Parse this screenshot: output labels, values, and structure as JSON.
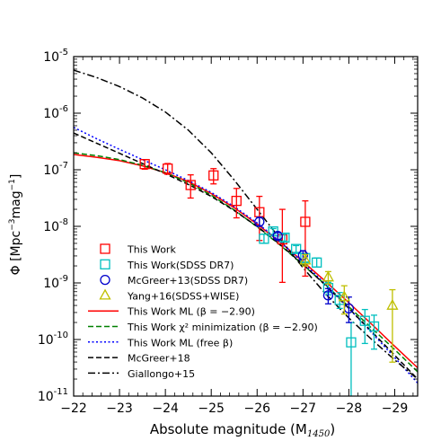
{
  "chart_data": {
    "type": "scatter",
    "xlabel": "Absolute magnitude (M",
    "xlabel_sub": "1450",
    "xlabel_close": ")",
    "ylabel": "Φ [Mpc",
    "ylabel_exp1": "−3",
    "ylabel_mid": "mag",
    "ylabel_exp2": "−1",
    "ylabel_close": "]",
    "xlim": [
      -22,
      -29.5
    ],
    "ylim_log10": [
      -11,
      -5
    ],
    "x_scale": "linear-inverted",
    "y_scale": "log",
    "x_ticks": [
      -22,
      -23,
      -24,
      -25,
      -26,
      -27,
      -28,
      -29
    ],
    "x_tick_labels": [
      "−22",
      "−23",
      "−24",
      "−25",
      "−26",
      "−27",
      "−28",
      "−29"
    ],
    "y_ticks": [
      -11,
      -10,
      -9,
      -8,
      -7,
      -6,
      -5
    ],
    "y_tick_labels": [
      {
        "base": "10",
        "exp": "-11"
      },
      {
        "base": "10",
        "exp": "-10"
      },
      {
        "base": "10",
        "exp": "-9"
      },
      {
        "base": "10",
        "exp": "-8"
      },
      {
        "base": "10",
        "exp": "-7"
      },
      {
        "base": "10",
        "exp": "-6"
      },
      {
        "base": "10",
        "exp": "-5"
      }
    ],
    "legend_position": "lower-left",
    "grid": false,
    "points": [
      {
        "name": "This Work",
        "marker": "square",
        "color": "#ff0000",
        "data": [
          {
            "x": -23.55,
            "y": -6.9,
            "yerr": [
              0.09,
              0.08
            ]
          },
          {
            "x": -24.05,
            "y": -6.98,
            "yerr": [
              0.1,
              0.09
            ]
          },
          {
            "x": -24.55,
            "y": -7.27,
            "yerr": [
              0.23,
              0.18
            ]
          },
          {
            "x": -25.05,
            "y": -7.1,
            "yerr": [
              0.15,
              0.12
            ]
          },
          {
            "x": -25.55,
            "y": -7.55,
            "yerr": [
              0.3,
              0.22
            ]
          },
          {
            "x": -26.05,
            "y": -7.75,
            "yerr": [
              0.5,
              0.28
            ]
          },
          {
            "x": -26.55,
            "y": -8.23,
            "yerr": [
              0.76,
              0.53
            ]
          },
          {
            "x": -27.05,
            "y": -7.92,
            "yerr": [
              0.96,
              0.37
            ]
          }
        ]
      },
      {
        "name": "This Work(SDSS DR7)",
        "marker": "square",
        "color": "#00bfbf",
        "data": [
          {
            "x": -26.15,
            "y": -8.22,
            "yerr": [
              0.08,
              0.08
            ]
          },
          {
            "x": -26.35,
            "y": -8.09,
            "yerr": [
              0.05,
              0.05
            ]
          },
          {
            "x": -26.6,
            "y": -8.2,
            "yerr": [
              0.06,
              0.06
            ]
          },
          {
            "x": -26.85,
            "y": -8.4,
            "yerr": [
              0.06,
              0.06
            ]
          },
          {
            "x": -27.05,
            "y": -8.56,
            "yerr": [
              0.07,
              0.07
            ]
          },
          {
            "x": -27.3,
            "y": -8.64,
            "yerr": [
              0.08,
              0.08
            ]
          },
          {
            "x": -27.55,
            "y": -9.09,
            "yerr": [
              0.12,
              0.1
            ]
          },
          {
            "x": -27.8,
            "y": -9.3,
            "yerr": [
              0.15,
              0.13
            ]
          },
          {
            "x": -28.05,
            "y": -10.05,
            "yerr": [
              1.0,
              0.35
            ]
          },
          {
            "x": -28.35,
            "y": -9.67,
            "yerr": [
              0.4,
              0.2
            ]
          },
          {
            "x": -28.55,
            "y": -9.77,
            "yerr": [
              0.4,
              0.2
            ]
          }
        ]
      },
      {
        "name": "McGreer+13(SDSS DR7)",
        "marker": "circle",
        "color": "#0000cc",
        "data": [
          {
            "x": -26.05,
            "y": -7.92,
            "yerr": [
              0.08,
              0.08
            ]
          },
          {
            "x": -26.45,
            "y": -8.17,
            "yerr": [
              0.06,
              0.06
            ]
          },
          {
            "x": -27.0,
            "y": -8.51,
            "yerr": [
              0.08,
              0.08
            ]
          },
          {
            "x": -27.55,
            "y": -9.22,
            "yerr": [
              0.15,
              0.12
            ]
          },
          {
            "x": -28.0,
            "y": -9.45,
            "yerr": [
              0.25,
              0.2
            ]
          }
        ]
      },
      {
        "name": "Yang+16(SDSS+WISE)",
        "marker": "triangle",
        "color": "#bfbf00",
        "data": [
          {
            "x": -27.05,
            "y": -8.6,
            "yerr": [
              0.1,
              0.1
            ]
          },
          {
            "x": -27.55,
            "y": -8.9,
            "yerr": [
              0.12,
              0.1
            ]
          },
          {
            "x": -27.9,
            "y": -9.25,
            "yerr": [
              0.3,
              0.2
            ]
          },
          {
            "x": -28.95,
            "y": -9.4,
            "yerr": [
              1.0,
              0.28
            ]
          }
        ]
      }
    ],
    "series": [
      {
        "name": "This Work ML (β = −2.90)",
        "style": "solid",
        "color": "#ff0000",
        "x": [
          -22,
          -22.5,
          -23,
          -23.5,
          -24,
          -24.5,
          -25,
          -25.5,
          -26,
          -26.5,
          -27,
          -27.5,
          -28,
          -28.5,
          -29,
          -29.5
        ],
        "y": [
          -6.73,
          -6.78,
          -6.84,
          -6.93,
          -7.05,
          -7.21,
          -7.42,
          -7.67,
          -7.96,
          -8.28,
          -8.62,
          -8.98,
          -9.35,
          -9.73,
          -10.12,
          -10.5
        ]
      },
      {
        "name": "This Work χ² minimization (β = −2.90)",
        "style": "dashed",
        "color": "#008000",
        "x": [
          -22,
          -22.5,
          -23,
          -23.5,
          -24,
          -24.5,
          -25,
          -25.5,
          -26,
          -26.5,
          -27,
          -27.5,
          -28,
          -28.5,
          -29,
          -29.5
        ],
        "y": [
          -6.7,
          -6.75,
          -6.82,
          -6.92,
          -7.05,
          -7.23,
          -7.45,
          -7.71,
          -8.01,
          -8.33,
          -8.68,
          -9.04,
          -9.42,
          -9.8,
          -10.18,
          -10.57
        ]
      },
      {
        "name": "This Work ML (free β)",
        "style": "dotted",
        "color": "#0000ff",
        "x": [
          -22,
          -22.5,
          -23,
          -23.5,
          -24,
          -24.5,
          -25,
          -25.5,
          -26,
          -26.5,
          -27,
          -27.5,
          -28,
          -28.5,
          -29,
          -29.5
        ],
        "y": [
          -6.25,
          -6.45,
          -6.64,
          -6.82,
          -7.0,
          -7.19,
          -7.4,
          -7.65,
          -7.94,
          -8.27,
          -8.64,
          -9.03,
          -9.45,
          -9.88,
          -10.32,
          -10.77
        ]
      },
      {
        "name": "McGreer+18",
        "style": "dashed",
        "color": "#000000",
        "x": [
          -22,
          -22.5,
          -23,
          -23.5,
          -24,
          -24.5,
          -25,
          -25.5,
          -26,
          -26.5,
          -27,
          -27.5,
          -28,
          -28.5,
          -29,
          -29.5
        ],
        "y": [
          -6.35,
          -6.53,
          -6.71,
          -6.89,
          -7.07,
          -7.26,
          -7.47,
          -7.72,
          -8.0,
          -8.32,
          -8.67,
          -9.05,
          -9.45,
          -9.86,
          -10.28,
          -10.7
        ]
      },
      {
        "name": "Giallongo+15",
        "style": "dashdot",
        "color": "#000000",
        "x": [
          -22,
          -22.5,
          -23,
          -23.5,
          -24,
          -24.5,
          -25,
          -25.5,
          -26,
          -26.5,
          -27,
          -27.5,
          -28,
          -28.5,
          -29,
          -29.5
        ],
        "y": [
          -5.24,
          -5.37,
          -5.53,
          -5.73,
          -5.98,
          -6.3,
          -6.7,
          -7.18,
          -7.7,
          -8.22,
          -8.73,
          -9.2,
          -9.62,
          -10.0,
          -10.36,
          -10.7
        ]
      }
    ],
    "legend": [
      {
        "label": "This Work",
        "kind": "marker",
        "marker": "square",
        "color": "#ff0000"
      },
      {
        "label": "This Work(SDSS DR7)",
        "kind": "marker",
        "marker": "square",
        "color": "#00bfbf"
      },
      {
        "label": "McGreer+13(SDSS DR7)",
        "kind": "marker",
        "marker": "circle",
        "color": "#0000cc"
      },
      {
        "label": "Yang+16(SDSS+WISE)",
        "kind": "marker",
        "marker": "triangle",
        "color": "#bfbf00"
      },
      {
        "label": "This Work ML (β = −2.90)",
        "kind": "line",
        "style": "solid",
        "color": "#ff0000"
      },
      {
        "label": "This Work χ² minimization (β = −2.90)",
        "kind": "line",
        "style": "dashed",
        "color": "#008000"
      },
      {
        "label": "This Work ML (free β)",
        "kind": "line",
        "style": "dotted",
        "color": "#0000ff"
      },
      {
        "label": "McGreer+18",
        "kind": "line",
        "style": "dashed",
        "color": "#000000"
      },
      {
        "label": "Giallongo+15",
        "kind": "line",
        "style": "dashdot",
        "color": "#000000"
      }
    ]
  }
}
